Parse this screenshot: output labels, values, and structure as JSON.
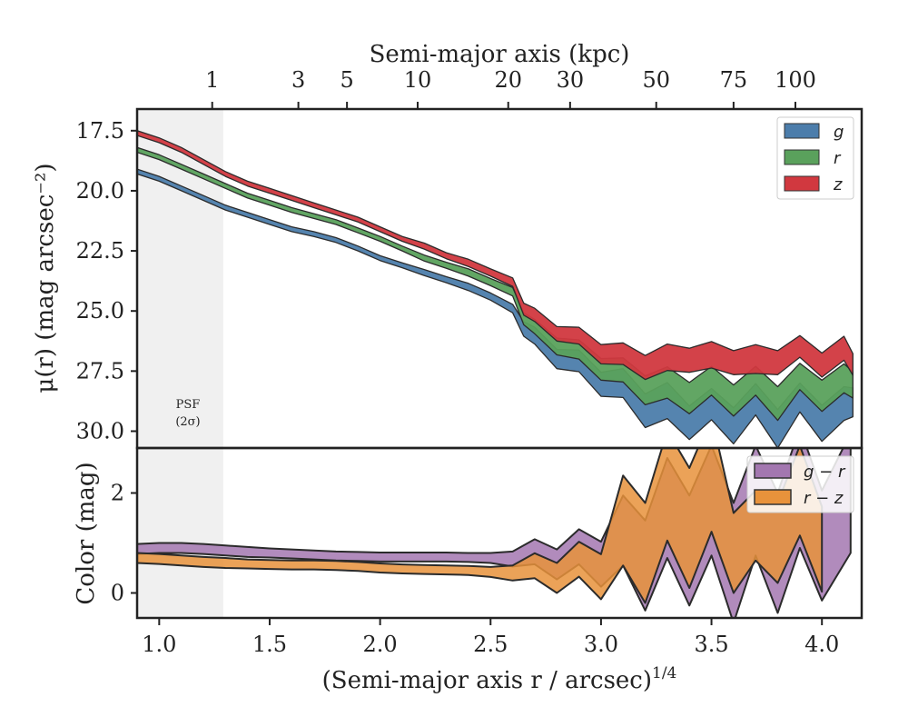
{
  "chart_data": {
    "type": "area",
    "top_axis": {
      "label": "Semi-major axis (kpc)",
      "ticks": [
        "1",
        "3",
        "5",
        "10",
        "20",
        "30",
        "50",
        "75",
        "100"
      ],
      "tick_x": [
        1.24,
        1.63,
        1.85,
        2.17,
        2.58,
        2.86,
        3.25,
        3.6,
        3.88
      ]
    },
    "x_axis": {
      "label": "(Semi-major axis r / arcsec)",
      "label_sup": "1/4",
      "range": [
        0.9,
        4.18
      ],
      "ticks": [
        "1.0",
        "1.5",
        "2.0",
        "2.5",
        "3.0",
        "3.5",
        "4.0"
      ]
    },
    "psf_region": {
      "x": [
        0.9,
        1.29
      ],
      "label_line1": "PSF",
      "label_line2": "(2σ)"
    },
    "panels": [
      {
        "name": "surface-brightness",
        "ylabel": "μ(r) (mag arcsec⁻²)",
        "yrange": [
          16.6,
          30.7
        ],
        "inverted": true,
        "yticks": [
          "17.5",
          "20.0",
          "22.5",
          "25.0",
          "27.5",
          "30.0"
        ],
        "legend_position": "top-right",
        "series": [
          {
            "name": "g",
            "color": "#4c7dab",
            "x": [
              0.9,
              1.0,
              1.1,
              1.2,
              1.3,
              1.4,
              1.5,
              1.6,
              1.7,
              1.8,
              1.9,
              2.0,
              2.1,
              2.2,
              2.3,
              2.4,
              2.5,
              2.6,
              2.65,
              2.7,
              2.8,
              2.9,
              3.0,
              3.1,
              3.2,
              3.3,
              3.4,
              3.5,
              3.6,
              3.7,
              3.8,
              3.9,
              4.0,
              4.1,
              4.14
            ],
            "y": [
              19.2,
              19.5,
              19.9,
              20.3,
              20.7,
              21.0,
              21.3,
              21.6,
              21.8,
              22.05,
              22.4,
              22.8,
              23.1,
              23.4,
              23.7,
              24.0,
              24.4,
              24.9,
              25.6,
              26.2,
              26.8,
              27.3,
              27.8,
              28.3,
              28.8,
              29.1,
              29.3,
              29.2,
              29.4,
              29.0,
              29.5,
              28.9,
              29.3,
              29.2,
              28.5
            ],
            "width": [
              0.2,
              0.2,
              0.2,
              0.2,
              0.2,
              0.2,
              0.2,
              0.2,
              0.2,
              0.2,
              0.2,
              0.2,
              0.2,
              0.25,
              0.25,
              0.3,
              0.3,
              0.35,
              0.6,
              0.7,
              0.8,
              0.9,
              1.0,
              1.2,
              1.4,
              1.5,
              1.4,
              1.3,
              1.5,
              1.3,
              1.6,
              1.2,
              1.5,
              1.4,
              1.2
            ]
          },
          {
            "name": "r",
            "color": "#5aa15c",
            "x": [
              0.9,
              1.0,
              1.1,
              1.2,
              1.3,
              1.4,
              1.5,
              1.6,
              1.7,
              1.8,
              1.9,
              2.0,
              2.1,
              2.2,
              2.3,
              2.4,
              2.5,
              2.6,
              2.65,
              2.7,
              2.8,
              2.9,
              3.0,
              3.1,
              3.2,
              3.3,
              3.4,
              3.5,
              3.6,
              3.7,
              3.8,
              3.9,
              4.0,
              4.1,
              4.14
            ],
            "y": [
              18.3,
              18.6,
              19.0,
              19.4,
              19.8,
              20.2,
              20.5,
              20.8,
              21.05,
              21.3,
              21.65,
              22.0,
              22.4,
              22.8,
              23.1,
              23.4,
              23.8,
              24.2,
              25.2,
              25.8,
              26.3,
              26.8,
              27.2,
              27.7,
              28.0,
              28.3,
              28.3,
              28.2,
              28.4,
              28.2,
              28.5,
              28.0,
              28.2,
              28.1,
              27.8
            ],
            "width": [
              0.2,
              0.2,
              0.2,
              0.2,
              0.2,
              0.2,
              0.2,
              0.2,
              0.2,
              0.2,
              0.2,
              0.2,
              0.2,
              0.25,
              0.25,
              0.3,
              0.3,
              0.35,
              0.5,
              0.6,
              0.7,
              0.8,
              0.9,
              1.0,
              1.2,
              1.3,
              1.3,
              1.2,
              1.3,
              1.2,
              1.4,
              1.1,
              1.3,
              1.2,
              1.1
            ]
          },
          {
            "name": "z",
            "color": "#d1383f",
            "x": [
              0.9,
              1.0,
              1.1,
              1.2,
              1.3,
              1.4,
              1.5,
              1.6,
              1.7,
              1.8,
              1.9,
              2.0,
              2.1,
              2.2,
              2.3,
              2.4,
              2.5,
              2.6,
              2.65,
              2.7,
              2.8,
              2.9,
              3.0,
              3.1,
              3.2,
              3.3,
              3.4,
              3.5,
              3.6,
              3.7,
              3.8,
              3.9,
              4.0,
              4.1,
              4.14
            ],
            "y": [
              17.6,
              17.9,
              18.3,
              18.8,
              19.3,
              19.7,
              20.0,
              20.3,
              20.6,
              20.9,
              21.2,
              21.6,
              22.0,
              22.3,
              22.7,
              23.0,
              23.4,
              23.8,
              24.8,
              25.3,
              25.8,
              26.2,
              26.6,
              27.0,
              27.1,
              27.2,
              26.8,
              27.1,
              26.9,
              27.3,
              26.9,
              26.7,
              27.0,
              26.8,
              27.0
            ],
            "width": [
              0.2,
              0.2,
              0.2,
              0.2,
              0.2,
              0.2,
              0.2,
              0.2,
              0.2,
              0.2,
              0.2,
              0.2,
              0.2,
              0.25,
              0.25,
              0.3,
              0.3,
              0.35,
              0.5,
              0.55,
              0.6,
              0.7,
              0.8,
              0.9,
              1.0,
              1.1,
              1.0,
              1.1,
              1.0,
              1.2,
              1.0,
              0.9,
              1.0,
              1.0,
              0.9
            ]
          }
        ]
      },
      {
        "name": "color",
        "ylabel": "Color (mag)",
        "yrange": [
          -0.5,
          2.9
        ],
        "inverted": false,
        "yticks": [
          "0",
          "2"
        ],
        "legend_position": "top-right",
        "series": [
          {
            "name": "g − r",
            "color": "#a377b0",
            "x": [
              0.9,
              1.0,
              1.1,
              1.2,
              1.3,
              1.4,
              1.5,
              1.6,
              1.7,
              1.8,
              1.9,
              2.0,
              2.1,
              2.2,
              2.3,
              2.4,
              2.5,
              2.6,
              2.7,
              2.8,
              2.9,
              3.0,
              3.1,
              3.2,
              3.3,
              3.4,
              3.5,
              3.6,
              3.7,
              3.8,
              3.9,
              4.0,
              4.13
            ],
            "y": [
              0.88,
              0.9,
              0.9,
              0.88,
              0.85,
              0.82,
              0.8,
              0.78,
              0.76,
              0.74,
              0.73,
              0.72,
              0.72,
              0.72,
              0.72,
              0.71,
              0.7,
              0.68,
              0.7,
              0.72,
              0.75,
              0.8,
              0.9,
              1.0,
              1.2,
              1.4,
              1.3,
              1.2,
              1.3,
              1.4,
              1.5,
              1.5,
              1.4
            ],
            "width": [
              0.2,
              0.2,
              0.2,
              0.2,
              0.2,
              0.2,
              0.18,
              0.18,
              0.18,
              0.18,
              0.18,
              0.18,
              0.18,
              0.18,
              0.18,
              0.18,
              0.2,
              0.3,
              0.5,
              0.6,
              0.7,
              0.9,
              1.4,
              1.8,
              2.0,
              2.2,
              2.2,
              2.4,
              2.2,
              2.4,
              2.4,
              2.2,
              2.4
            ]
          },
          {
            "name": "r − z",
            "color": "#e8923b",
            "x": [
              0.9,
              1.0,
              1.1,
              1.2,
              1.3,
              1.4,
              1.5,
              1.6,
              1.7,
              1.8,
              1.9,
              2.0,
              2.1,
              2.2,
              2.3,
              2.4,
              2.5,
              2.6,
              2.7,
              2.8,
              2.9,
              3.0,
              3.1,
              3.2,
              3.3,
              3.4,
              3.5,
              3.6,
              3.7,
              3.8,
              3.9,
              4.0
            ],
            "y": [
              0.7,
              0.68,
              0.65,
              0.62,
              0.6,
              0.58,
              0.57,
              0.56,
              0.56,
              0.55,
              0.53,
              0.5,
              0.48,
              0.47,
              0.46,
              0.45,
              0.42,
              0.4,
              0.42,
              0.45,
              0.5,
              0.55,
              1.0,
              1.3,
              1.6,
              1.9,
              1.8,
              1.2,
              1.0,
              1.4,
              1.6,
              1.3
            ],
            "width": [
              0.2,
              0.2,
              0.2,
              0.2,
              0.2,
              0.18,
              0.18,
              0.18,
              0.18,
              0.18,
              0.18,
              0.18,
              0.18,
              0.18,
              0.18,
              0.18,
              0.2,
              0.3,
              0.5,
              0.6,
              0.7,
              0.9,
              1.8,
              2.0,
              2.2,
              2.4,
              2.3,
              1.6,
              1.4,
              1.6,
              1.8,
              1.7
            ]
          }
        ]
      }
    ]
  }
}
